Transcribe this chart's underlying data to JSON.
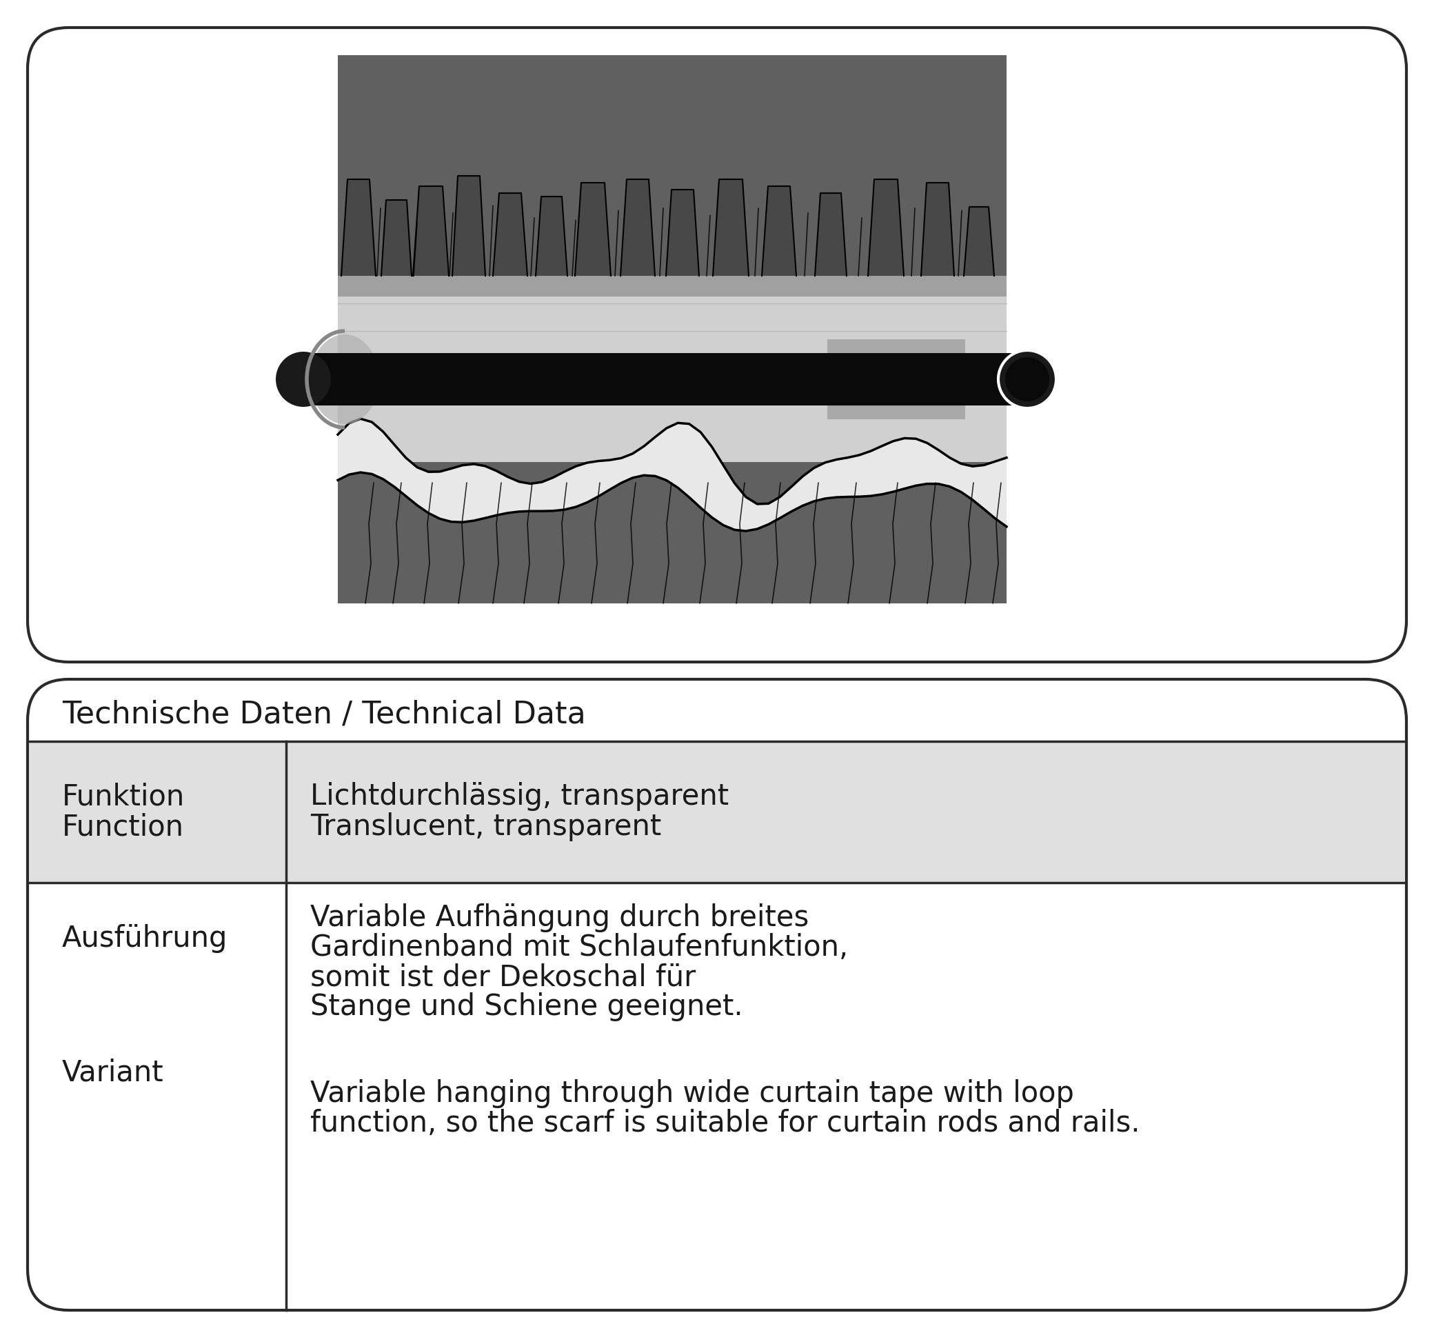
{
  "bg_color": "#ffffff",
  "border_color": "#2a2a2a",
  "title": "Technische Daten / Technical Data",
  "title_fontsize": 32,
  "row1_label_de": "Funktion",
  "row1_label_en": "Function",
  "row1_value_de": "Lichtdurchlässig, transparent",
  "row1_value_en": "Translucent, transparent",
  "row1_bg": "#e0e0e0",
  "row2_label_de": "Ausführung",
  "row2_label_en": "Variant",
  "row2_value_de1": "Variable Aufhängung durch breites",
  "row2_value_de2": "Gardinenband mit Schlaufenfunktion,",
  "row2_value_de3": "somit ist der Dekoschal für",
  "row2_value_de4": "Stange und Schiene geeignet.",
  "row2_value_en1": "Variable hanging through wide curtain tape with loop",
  "row2_value_en2": "function, so the scarf is suitable for curtain rods and rails.",
  "row2_bg": "#ffffff",
  "label_fontsize": 30,
  "value_fontsize": 30,
  "curtain_dark": "#606060",
  "curtain_darker": "#484848",
  "curtain_light": "#d0d0d0",
  "curtain_lighter": "#e8e8e8",
  "curtain_medium": "#a0a0a0"
}
